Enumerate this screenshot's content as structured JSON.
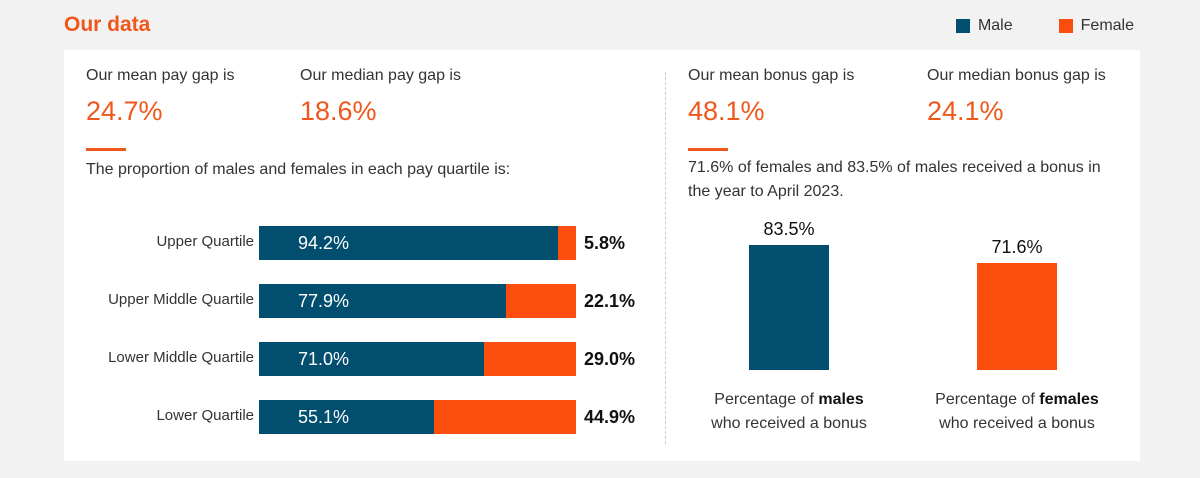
{
  "header": {
    "title": "Our data"
  },
  "legend": [
    {
      "label": "Male",
      "color": "#014e6e"
    },
    {
      "label": "Female",
      "color": "#fb4e0e"
    }
  ],
  "pay": {
    "mean_label": "Our mean pay gap is",
    "mean_value": "24.7%",
    "median_label": "Our median pay gap is",
    "median_value": "18.6%",
    "quartile_intro": "The proportion of males and females in each pay quartile is:"
  },
  "bonus": {
    "mean_label": "Our mean bonus gap is",
    "mean_value": "48.1%",
    "median_label": "Our median bonus gap is",
    "median_value": "24.1%",
    "intro": "71.6% of females and 83.5% of males received a bonus in the year to April 2023."
  },
  "chart_data": [
    {
      "type": "bar",
      "orientation": "horizontal",
      "stacked": true,
      "categories": [
        "Upper Quartile",
        "Upper Middle Quartile",
        "Lower Middle Quartile",
        "Lower Quartile"
      ],
      "series": [
        {
          "name": "Male",
          "values": [
            94.2,
            77.9,
            71.0,
            55.1
          ],
          "labels": [
            "94.2%",
            "77.9%",
            "71.0%",
            "55.1%"
          ],
          "color": "#014e6e"
        },
        {
          "name": "Female",
          "values": [
            5.8,
            22.1,
            29.0,
            44.9
          ],
          "labels": [
            "5.8%",
            "22.1%",
            "29.0%",
            "44.9%"
          ],
          "color": "#fb4e0e"
        }
      ],
      "xlim": [
        0,
        100
      ]
    },
    {
      "type": "bar",
      "orientation": "vertical",
      "categories": [
        "males",
        "females"
      ],
      "values": [
        83.5,
        71.6
      ],
      "labels": [
        "83.5%",
        "71.6%"
      ],
      "colors": [
        "#014e6e",
        "#fb4e0e"
      ],
      "captions": [
        {
          "pre": "Percentage of ",
          "bold": "males",
          "post": "who received a bonus"
        },
        {
          "pre": "Percentage of ",
          "bold": "females",
          "post": "who received a bonus"
        }
      ],
      "ylim": [
        0,
        100
      ]
    }
  ]
}
